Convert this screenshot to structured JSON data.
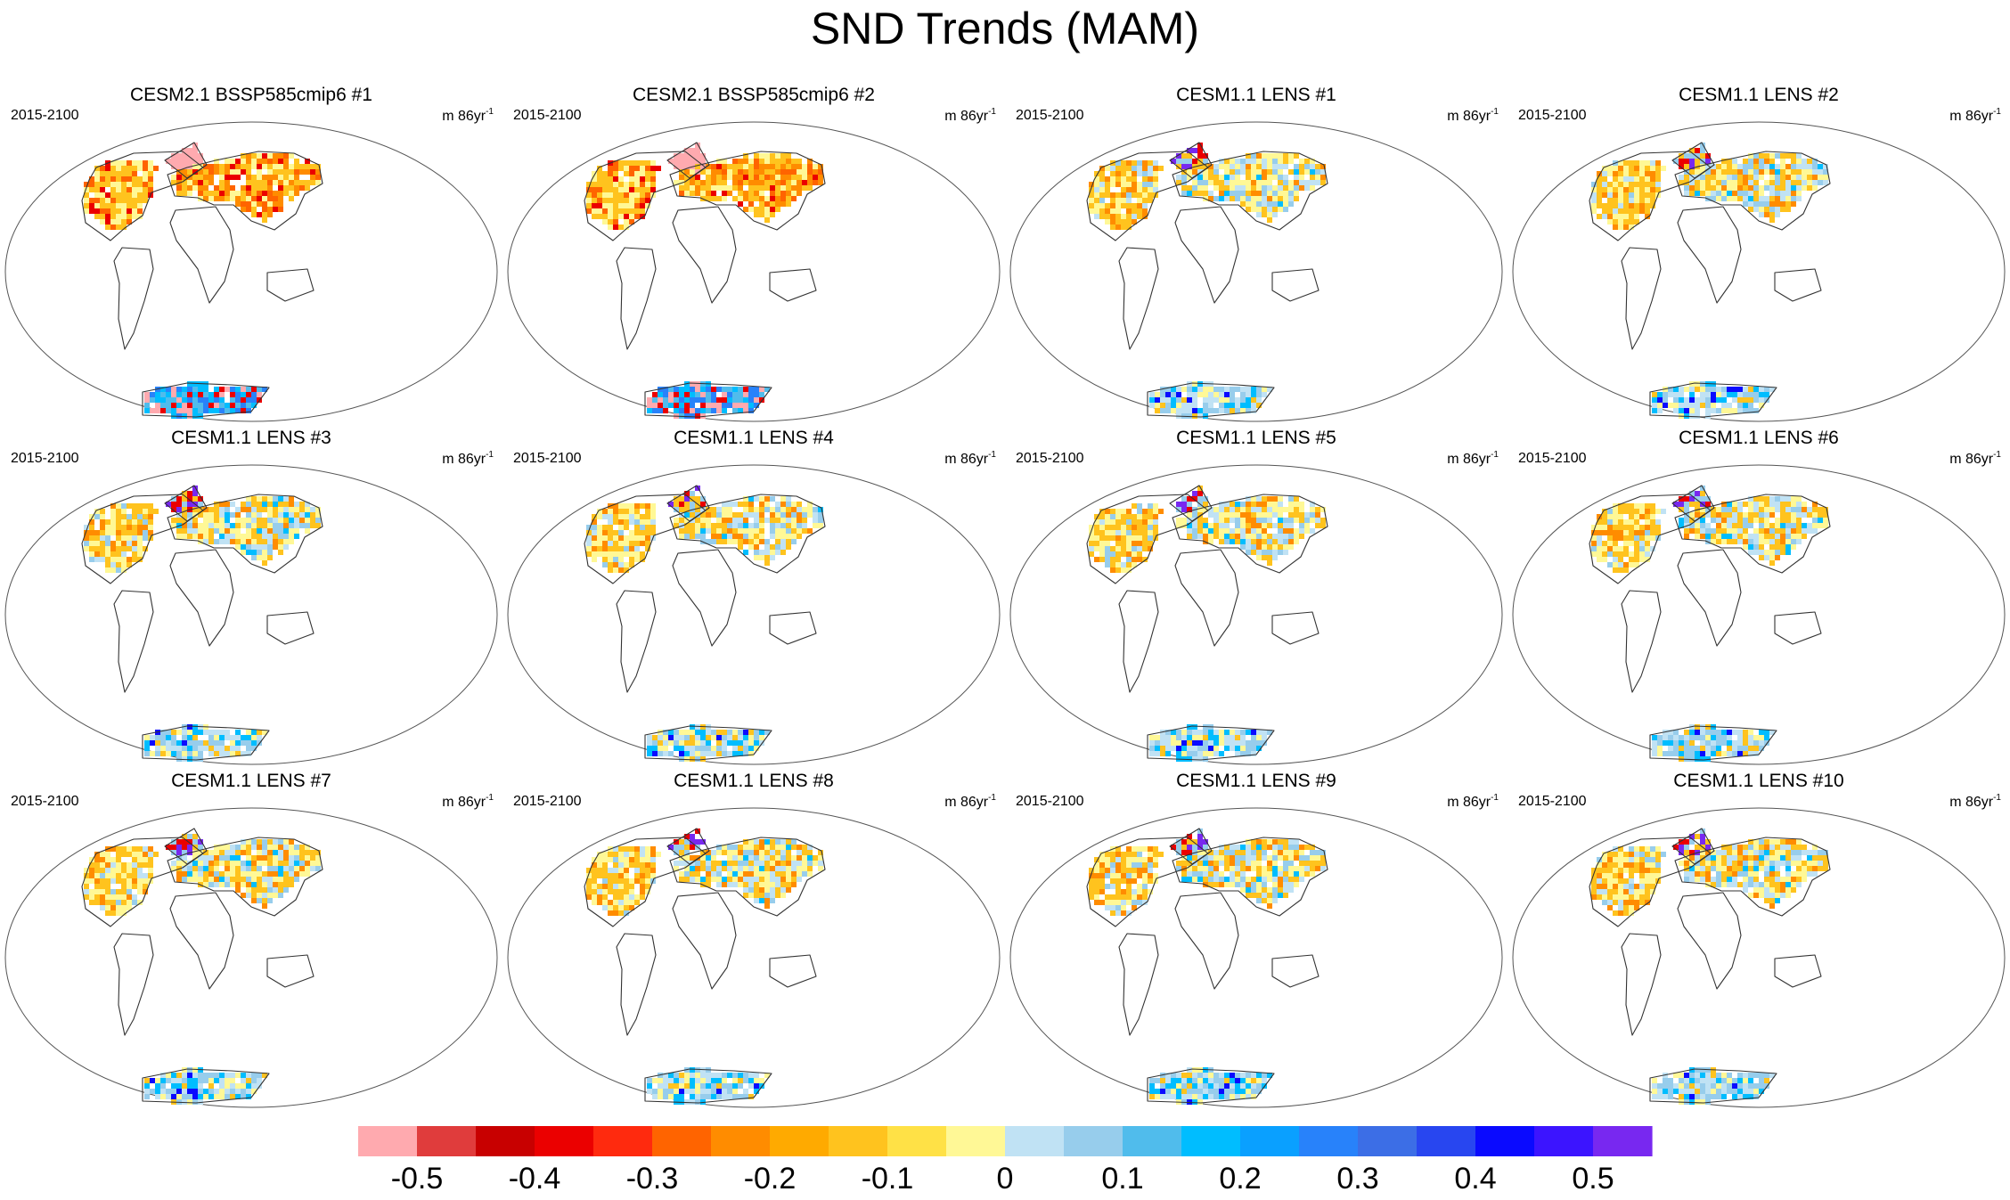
{
  "figure": {
    "title": "SND Trends (MAM)",
    "period": "2015-2100",
    "units_base": "m 86yr",
    "units_exp": "-1"
  },
  "panels": [
    {
      "title": "CESM2.1 BSSP585cmip6 #1",
      "variant": "cesm2",
      "seed": 11
    },
    {
      "title": "CESM2.1 BSSP585cmip6 #2",
      "variant": "cesm2",
      "seed": 23
    },
    {
      "title": "CESM1.1 LENS #1",
      "variant": "lens",
      "seed": 37
    },
    {
      "title": "CESM1.1 LENS #2",
      "variant": "lens",
      "seed": 41
    },
    {
      "title": "CESM1.1 LENS #3",
      "variant": "lens",
      "seed": 53
    },
    {
      "title": "CESM1.1 LENS #4",
      "variant": "lens",
      "seed": 67
    },
    {
      "title": "CESM1.1 LENS #5",
      "variant": "lens",
      "seed": 71
    },
    {
      "title": "CESM1.1 LENS #6",
      "variant": "lens",
      "seed": 83
    },
    {
      "title": "CESM1.1 LENS #7",
      "variant": "lens",
      "seed": 97
    },
    {
      "title": "CESM1.1 LENS #8",
      "variant": "lens",
      "seed": 101
    },
    {
      "title": "CESM1.1 LENS #9",
      "variant": "lens",
      "seed": 113
    },
    {
      "title": "CESM1.1 LENS #10",
      "variant": "lens",
      "seed": 127
    }
  ],
  "colorbar": {
    "levels": [
      -0.55,
      -0.5,
      -0.45,
      -0.4,
      -0.35,
      -0.3,
      -0.25,
      -0.2,
      -0.15,
      -0.1,
      -0.05,
      0,
      0.05,
      0.1,
      0.15,
      0.2,
      0.25,
      0.3,
      0.35,
      0.4,
      0.45,
      0.5,
      0.55
    ],
    "colors": [
      "#ffaaaf",
      "#e03c3c",
      "#c80000",
      "#eb0000",
      "#ff2a0e",
      "#ff6400",
      "#ff8c00",
      "#ffaa00",
      "#ffc31e",
      "#ffe146",
      "#fff896",
      "#c0e2f4",
      "#97cdec",
      "#50bcec",
      "#00bdff",
      "#0aa0ff",
      "#2882fa",
      "#3c6ee6",
      "#2846f0",
      "#0a0aff",
      "#3c14ff",
      "#7828f0"
    ],
    "labels": [
      "-0.5",
      "-0.4",
      "-0.3",
      "-0.2",
      "-0.1",
      "0",
      "0.1",
      "0.2",
      "0.3",
      "0.4",
      "0.5"
    ],
    "label_values": [
      -0.5,
      -0.4,
      -0.3,
      -0.2,
      -0.1,
      0,
      0.1,
      0.2,
      0.3,
      0.4,
      0.5
    ]
  }
}
